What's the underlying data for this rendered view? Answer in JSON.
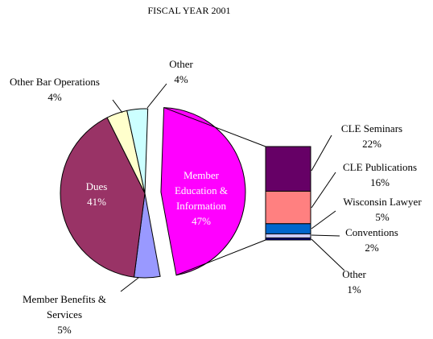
{
  "chart_data": [
    {
      "type": "pie",
      "title": "FISCAL YEAR 2001",
      "categories": [
        "Member Education & Information",
        "Member Benefits & Services",
        "Dues",
        "Other Bar Operations",
        "Other"
      ],
      "values": [
        47,
        5,
        41,
        4,
        4
      ],
      "value_labels": [
        "47%",
        "5%",
        "41%",
        "4%",
        "4%"
      ],
      "colors": [
        "#ff00ff",
        "#9999ff",
        "#993366",
        "#ffffcc",
        "#ccffff"
      ]
    },
    {
      "type": "stacked-bar",
      "categories": [
        "CLE Seminars",
        "CLE Publications",
        "Wisconsin Lawyer",
        "Conventions",
        "Other"
      ],
      "values": [
        22,
        16,
        5,
        2,
        1
      ],
      "value_labels": [
        "22%",
        "16%",
        "5%",
        "2%",
        "1%"
      ],
      "colors": [
        "#660066",
        "#ff8080",
        "#0066cc",
        "#ccccff",
        "#000080"
      ]
    }
  ]
}
